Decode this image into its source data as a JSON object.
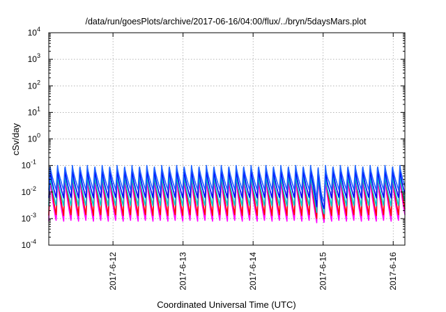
{
  "chart_data": {
    "type": "line",
    "title": "/data/run/goesPlots/archive/2017-06-16/04:00/flux/../bryn/5daysMars.plot",
    "xlabel": "Coordinated Universal Time (UTC)",
    "ylabel": "cSv/day",
    "yscale": "log",
    "ylim": [
      0.0001,
      10000
    ],
    "y_ticks": [
      {
        "base": "10",
        "exp": "-4"
      },
      {
        "base": "10",
        "exp": "-3"
      },
      {
        "base": "10",
        "exp": "-2"
      },
      {
        "base": "10",
        "exp": "-1"
      },
      {
        "base": "10",
        "exp": "0"
      },
      {
        "base": "10",
        "exp": "1"
      },
      {
        "base": "10",
        "exp": "2"
      },
      {
        "base": "10",
        "exp": "3"
      },
      {
        "base": "10",
        "exp": "4"
      }
    ],
    "xlim": [
      "2017-06-11T02:00",
      "2017-06-16T04:00"
    ],
    "x_ticks": [
      "2017-6-12",
      "2017-6-13",
      "2017-6-14",
      "2017-6-15",
      "2017-6-16"
    ],
    "grid": true,
    "pattern": {
      "cycle_hours": 2.55,
      "rise_hours": 0.45,
      "event_window": [
        "2017-06-14T20:30",
        "2017-06-15T02:00"
      ]
    },
    "series": [
      {
        "color": "#ff00ff",
        "peak": 0.035,
        "trough": 0.0008,
        "event_trough": 0.0006
      },
      {
        "color": "#ff0000",
        "peak": 0.06,
        "trough": 0.0013,
        "event_trough": 0.00075
      },
      {
        "color": "#00c8c8",
        "peak": 0.045,
        "trough": 0.003,
        "event_trough": 0.0009
      },
      {
        "color": "#0000ff",
        "peak": 0.07,
        "trough": 0.006,
        "event_trough": 0.0012
      },
      {
        "color": "#1e64ff",
        "peak": 0.1,
        "trough": 0.012,
        "event_trough": 0.002
      }
    ]
  }
}
